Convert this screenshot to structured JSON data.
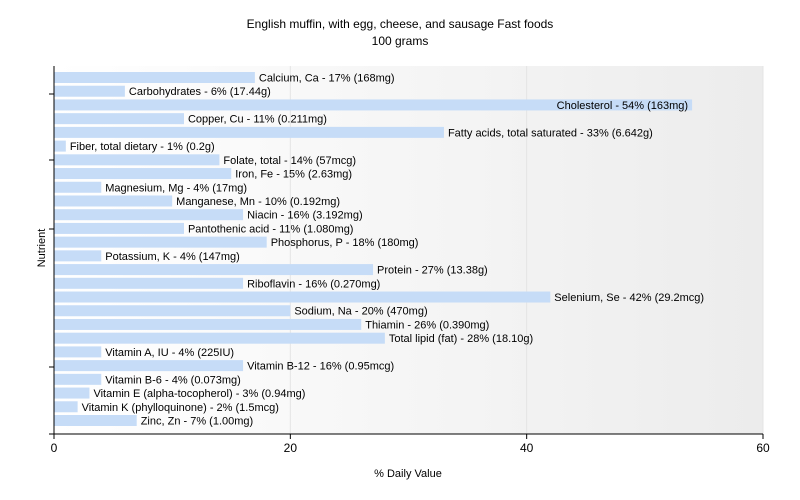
{
  "chart_data": {
    "type": "bar",
    "orientation": "horizontal",
    "title": "English muffin, with egg, cheese, and sausage Fast foods",
    "subtitle": "100 grams",
    "xlabel": "% Daily Value",
    "ylabel": "Nutrient",
    "xlim": [
      0,
      60
    ],
    "xticks": [
      0,
      20,
      40,
      60
    ],
    "grid": true,
    "bar_color": "#c6dcf7",
    "categories": [
      "Calcium, Ca",
      "Carbohydrates",
      "Cholesterol",
      "Copper, Cu",
      "Fatty acids, total saturated",
      "Fiber, total dietary",
      "Folate, total",
      "Iron, Fe",
      "Magnesium, Mg",
      "Manganese, Mn",
      "Niacin",
      "Pantothenic acid",
      "Phosphorus, P",
      "Potassium, K",
      "Protein",
      "Riboflavin",
      "Selenium, Se",
      "Sodium, Na",
      "Thiamin",
      "Total lipid (fat)",
      "Vitamin A, IU",
      "Vitamin B-12",
      "Vitamin B-6",
      "Vitamin E (alpha-tocopherol)",
      "Vitamin K (phylloquinone)",
      "Zinc, Zn"
    ],
    "values": [
      17,
      6,
      54,
      11,
      33,
      1,
      14,
      15,
      4,
      10,
      16,
      11,
      18,
      4,
      27,
      16,
      42,
      20,
      26,
      28,
      4,
      16,
      4,
      3,
      2,
      7
    ],
    "labels": [
      "Calcium, Ca - 17% (168mg)",
      "Carbohydrates - 6% (17.44g)",
      "Cholesterol - 54% (163mg)",
      "Copper, Cu - 11% (0.211mg)",
      "Fatty acids, total saturated - 33% (6.642g)",
      "Fiber, total dietary - 1% (0.2g)",
      "Folate, total - 14% (57mcg)",
      "Iron, Fe - 15% (2.63mg)",
      "Magnesium, Mg - 4% (17mg)",
      "Manganese, Mn - 10% (0.192mg)",
      "Niacin - 16% (3.192mg)",
      "Pantothenic acid - 11% (1.080mg)",
      "Phosphorus, P - 18% (180mg)",
      "Potassium, K - 4% (147mg)",
      "Protein - 27% (13.38g)",
      "Riboflavin - 16% (0.270mg)",
      "Selenium, Se - 42% (29.2mcg)",
      "Sodium, Na - 20% (470mg)",
      "Thiamin - 26% (0.390mg)",
      "Total lipid (fat) - 28% (18.10g)",
      "Vitamin A, IU - 4% (225IU)",
      "Vitamin B-12 - 16% (0.95mcg)",
      "Vitamin B-6 - 4% (0.073mg)",
      "Vitamin E (alpha-tocopherol) - 3% (0.94mg)",
      "Vitamin K (phylloquinone) - 2% (1.5mcg)",
      "Zinc, Zn - 7% (1.00mg)"
    ]
  }
}
